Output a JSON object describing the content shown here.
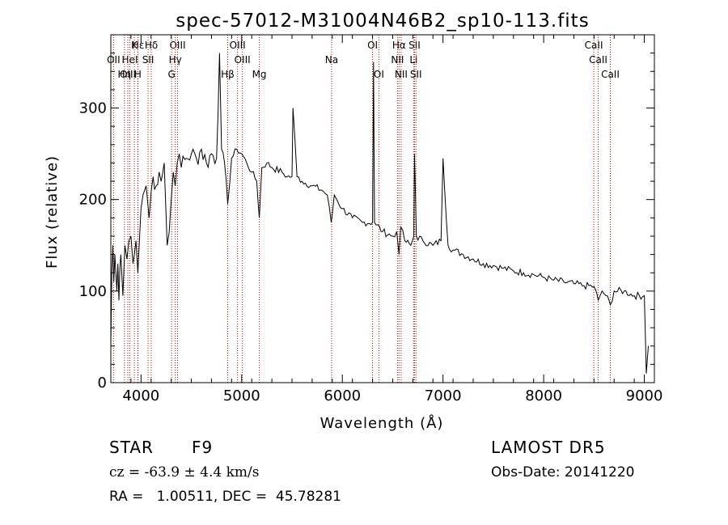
{
  "chart_data": {
    "type": "line",
    "title": "spec-57012-M31004N46B2_sp10-113.fits",
    "xlabel": "Wavelength (Å)",
    "ylabel": "Flux (relative)",
    "xlim": [
      3700,
      9100
    ],
    "ylim": [
      0,
      380
    ],
    "xticks": [
      4000,
      5000,
      6000,
      7000,
      8000,
      9000
    ],
    "yticks": [
      0,
      100,
      200,
      300
    ],
    "grid": false,
    "line_color": "#000000",
    "marker_color": "#cc0000",
    "series": [
      {
        "x": [
          3700,
          3710,
          3720,
          3730,
          3740,
          3750,
          3760,
          3770,
          3780,
          3790,
          3800,
          3820,
          3840,
          3860,
          3880,
          3900,
          3920,
          3934,
          3950,
          3968,
          3980,
          4000,
          4020,
          4050,
          4080,
          4102,
          4120,
          4150,
          4180,
          4200,
          4230,
          4260,
          4300,
          4320,
          4340,
          4360,
          4380,
          4400,
          4450,
          4500,
          4550,
          4600,
          4650,
          4700,
          4750,
          4780,
          4800,
          4830,
          4861,
          4900,
          4950,
          5000,
          5050,
          5100,
          5150,
          5175,
          5200,
          5250,
          5300,
          5400,
          5450,
          5500,
          5510,
          5550,
          5600,
          5700,
          5800,
          5850,
          5890,
          5896,
          5920,
          6000,
          6100,
          6200,
          6300,
          6310,
          6320,
          6400,
          6500,
          6540,
          6563,
          6580,
          6620,
          6680,
          6710,
          6717,
          6725,
          6735,
          6800,
          6900,
          6980,
          7000,
          7050,
          7100,
          7200,
          7300,
          7400,
          7500,
          7600,
          7700,
          7800,
          7900,
          8000,
          8100,
          8200,
          8300,
          8400,
          8500,
          8542,
          8580,
          8620,
          8662,
          8700,
          8800,
          8900,
          9000,
          9020,
          9040
        ],
        "y": [
          40,
          120,
          150,
          110,
          140,
          120,
          100,
          130,
          90,
          125,
          140,
          95,
          150,
          135,
          155,
          160,
          130,
          140,
          155,
          120,
          145,
          190,
          205,
          215,
          180,
          210,
          225,
          215,
          230,
          220,
          240,
          150,
          200,
          230,
          215,
          240,
          250,
          235,
          245,
          250,
          245,
          255,
          240,
          250,
          245,
          360,
          255,
          240,
          195,
          245,
          255,
          250,
          240,
          230,
          220,
          180,
          235,
          240,
          235,
          230,
          225,
          225,
          300,
          225,
          220,
          215,
          210,
          205,
          175,
          180,
          205,
          190,
          180,
          175,
          175,
          350,
          175,
          165,
          160,
          165,
          140,
          170,
          155,
          150,
          160,
          250,
          215,
          160,
          155,
          150,
          155,
          245,
          150,
          145,
          140,
          135,
          130,
          128,
          125,
          122,
          120,
          118,
          115,
          112,
          110,
          108,
          106,
          105,
          90,
          100,
          95,
          85,
          100,
          100,
          95,
          95,
          10,
          40
        ]
      }
    ],
    "lines": [
      {
        "name": "Hε",
        "x": 3970,
        "row": 0
      },
      {
        "name": "K",
        "x": 3934,
        "row": 0
      },
      {
        "name": "Hδ",
        "x": 4102,
        "row": 0
      },
      {
        "name": "OIII",
        "x": 4363,
        "row": 0
      },
      {
        "name": "OIII",
        "x": 4959,
        "row": 0
      },
      {
        "name": "OI",
        "x": 6300,
        "row": 0
      },
      {
        "name": "Hα",
        "x": 6563,
        "row": 0
      },
      {
        "name": "SII",
        "x": 6717,
        "row": 0
      },
      {
        "name": "CaII",
        "x": 8498,
        "row": 0
      },
      {
        "name": "OII",
        "x": 3727,
        "row": 1
      },
      {
        "name": "HeI",
        "x": 3889,
        "row": 1
      },
      {
        "name": "SII",
        "x": 4070,
        "row": 1
      },
      {
        "name": "Hγ",
        "x": 4340,
        "row": 1
      },
      {
        "name": "OIII",
        "x": 5007,
        "row": 1
      },
      {
        "name": "Na",
        "x": 5893,
        "row": 1
      },
      {
        "name": "NII",
        "x": 6548,
        "row": 1
      },
      {
        "name": "Li",
        "x": 6708,
        "row": 1
      },
      {
        "name": "CaII",
        "x": 8542,
        "row": 1
      },
      {
        "name": "OIII",
        "x": 3869,
        "row": 2
      },
      {
        "name": "Hη",
        "x": 3835,
        "row": 2
      },
      {
        "name": "H",
        "x": 3968,
        "row": 2
      },
      {
        "name": "G",
        "x": 4304,
        "row": 2
      },
      {
        "name": "Hβ",
        "x": 4861,
        "row": 2
      },
      {
        "name": "Mg",
        "x": 5175,
        "row": 2
      },
      {
        "name": "OI",
        "x": 6363,
        "row": 2
      },
      {
        "name": "NII",
        "x": 6584,
        "row": 2
      },
      {
        "name": "SII",
        "x": 6731,
        "row": 2
      },
      {
        "name": "CaII",
        "x": 8662,
        "row": 2
      }
    ]
  },
  "info": {
    "class": "STAR",
    "subclass": "F9",
    "survey": "LAMOST DR5",
    "cz": "cz = -63.9 ± 4.4 km/s",
    "obs_date": "Obs-Date: 20141220",
    "radec": "RA =   1.00511, DEC =  45.78281"
  }
}
